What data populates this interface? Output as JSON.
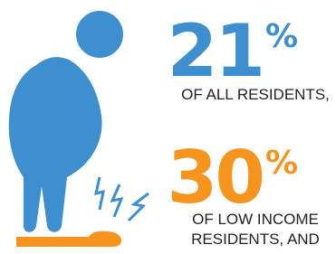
{
  "stats": [
    {
      "value": 21,
      "unit": "%",
      "label_lines": [
        "OF ALL RESIDENTS,"
      ],
      "color": "#3d8fd0"
    },
    {
      "value": 30,
      "unit": "%",
      "label_lines": [
        "OF LOW INCOME",
        "RESIDENTS, AND"
      ],
      "color": "#f7941d"
    }
  ]
}
